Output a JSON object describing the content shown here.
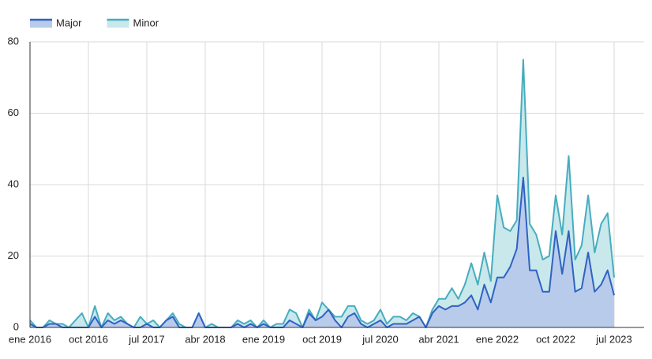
{
  "chart_data": {
    "type": "stacked-area",
    "categories": [
      "ene 2016",
      null,
      null,
      null,
      null,
      null,
      null,
      null,
      null,
      "oct 2016",
      null,
      null,
      null,
      null,
      null,
      null,
      null,
      null,
      "jul 2017",
      null,
      null,
      null,
      null,
      null,
      null,
      null,
      null,
      "abr 2018",
      null,
      null,
      null,
      null,
      null,
      null,
      null,
      null,
      "ene 2019",
      null,
      null,
      null,
      null,
      null,
      null,
      null,
      null,
      "oct 2019",
      null,
      null,
      null,
      null,
      null,
      null,
      null,
      null,
      "jul 2020",
      null,
      null,
      null,
      null,
      null,
      null,
      null,
      null,
      "abr 2021",
      null,
      null,
      null,
      null,
      null,
      null,
      null,
      null,
      "ene 2022",
      null,
      null,
      null,
      null,
      null,
      null,
      null,
      null,
      "oct 2022",
      null,
      null,
      null,
      null,
      null,
      null,
      null,
      null,
      "jul 2023"
    ],
    "series": [
      {
        "name": "Major",
        "color": "#2f62c4",
        "fill": "#b9cbeb",
        "values": [
          1,
          0,
          0,
          1,
          1,
          0,
          0,
          0,
          0,
          0,
          3,
          0,
          2,
          1,
          2,
          1,
          0,
          0,
          1,
          0,
          0,
          2,
          3,
          0,
          0,
          0,
          4,
          0,
          0,
          0,
          0,
          0,
          1,
          0,
          1,
          0,
          1,
          0,
          0,
          0,
          2,
          1,
          0,
          4,
          2,
          3,
          5,
          2,
          0,
          3,
          4,
          1,
          0,
          1,
          2,
          0,
          1,
          1,
          1,
          2,
          3,
          0,
          4,
          6,
          5,
          6,
          6,
          7,
          9,
          5,
          12,
          7,
          14,
          14,
          17,
          22,
          42,
          16,
          16,
          10,
          10,
          27,
          15,
          27,
          10,
          11,
          21,
          10,
          12,
          16,
          9
        ]
      },
      {
        "name": "Minor",
        "color": "#47adbf",
        "fill": "#c8e8eb",
        "values": [
          1,
          0,
          0,
          1,
          0,
          1,
          0,
          2,
          4,
          0,
          3,
          0,
          2,
          1,
          1,
          0,
          0,
          3,
          0,
          2,
          0,
          0,
          1,
          1,
          0,
          0,
          0,
          0,
          1,
          0,
          0,
          0,
          1,
          1,
          1,
          0,
          1,
          0,
          1,
          1,
          3,
          3,
          0,
          1,
          0,
          4,
          0,
          1,
          3,
          3,
          2,
          1,
          1,
          1,
          3,
          1,
          2,
          2,
          1,
          2,
          0,
          0,
          1,
          2,
          3,
          5,
          2,
          5,
          9,
          7,
          9,
          6,
          23,
          14,
          10,
          8,
          33,
          13,
          10,
          9,
          10,
          10,
          11,
          21,
          9,
          12,
          16,
          11,
          17,
          16,
          5
        ]
      }
    ],
    "ylim": [
      0,
      80
    ],
    "yticks": [
      0,
      20,
      40,
      60,
      80
    ],
    "grid": true,
    "legend": "top-left"
  }
}
